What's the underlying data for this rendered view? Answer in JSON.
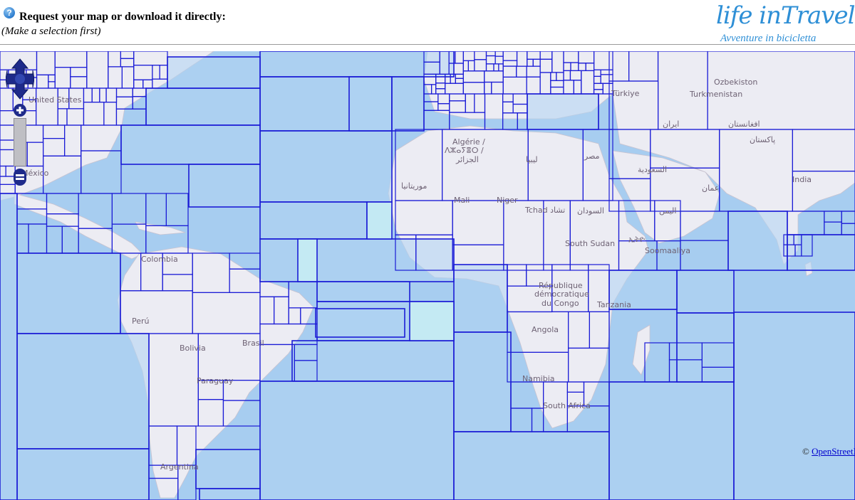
{
  "header": {
    "help_icon": "?",
    "title": "Request your map or download it directly:",
    "hint": "(Make a selection first)"
  },
  "logo": {
    "main": "life inTravel",
    "sub": "Avventure in bicicletta"
  },
  "map": {
    "labels": {
      "colombia": "Colombia",
      "peru": "Perú",
      "bolivia": "Bolivia",
      "brasil": "Brasil",
      "paraguay": "Paraguay",
      "argentina": "Argentina",
      "algerie": "Algérie /",
      "algerie_tifinagh": "ⴷⵣⴰⵢⴻⵔ /",
      "algerie_ar": "الجزائر",
      "libya": "ليبيا",
      "egypt": "مصر",
      "mauritania": "موريتانيا",
      "mali": "Mali",
      "niger": "Niger",
      "tchad": "Tchad تشاد",
      "sudan": "السودان",
      "south_sudan": "South Sudan",
      "ethiopia": "ኢትዮ",
      "somalia": "Soomaaliya",
      "drc_1": "République",
      "drc_2": "démocratique",
      "drc_3": "du Congo",
      "tanzania": "Tanzania",
      "angola": "Angola",
      "namibia": "Namibia",
      "south_africa": "South Africa",
      "turkey": "Türkiye",
      "turkmenistan": "Turkmenistan",
      "uzbekistan": "Ozbekiston",
      "iran": "ایران",
      "afghanistan": "افغانستان",
      "pakistan": "پاکستان",
      "saudi": "السعودية",
      "oman": "عمان",
      "yemen": "اليمن",
      "india": "India",
      "mexico": "México",
      "united_states": "United States"
    },
    "attribution_prefix": "© ",
    "attribution_link": "OpenStreetMap"
  },
  "colors": {
    "water": "#a7cdf0",
    "land": "#ececf3",
    "tile_stroke": "#1b1cd6",
    "logo": "#2e8fd6"
  },
  "icons": [
    "help-icon",
    "pan-control-icon",
    "zoom-in-icon",
    "zoom-out-icon"
  ]
}
